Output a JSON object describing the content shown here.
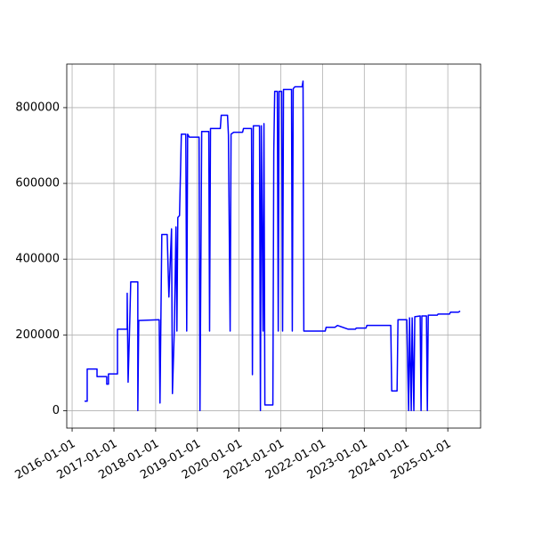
{
  "chart_data": {
    "type": "line",
    "x": [
      "2016-04-19",
      "2016-05-12",
      "2016-05-12",
      "2016-08-06",
      "2016-08-06",
      "2016-10-30",
      "2016-10-30",
      "2016-11-14",
      "2016-11-14",
      "2017-02-01",
      "2017-02-01",
      "2017-04-27",
      "2017-04-27",
      "2017-05-05",
      "2017-05-20",
      "2017-05-28",
      "2017-07-29",
      "2017-07-29",
      "2017-08-06",
      "2018-02-01",
      "2018-02-08",
      "2018-02-24",
      "2018-04-12",
      "2018-04-27",
      "2018-05-20",
      "2018-05-28",
      "2018-06-13",
      "2018-06-28",
      "2018-07-06",
      "2018-07-14",
      "2018-07-29",
      "2018-08-14",
      "2018-09-22",
      "2018-09-30",
      "2018-10-08",
      "2018-10-23",
      "2019-01-16",
      "2019-01-24",
      "2019-02-08",
      "2019-04-11",
      "2019-04-18",
      "2019-04-26",
      "2019-07-21",
      "2019-07-29",
      "2019-09-22",
      "2019-09-30",
      "2019-10-15",
      "2019-10-23",
      "2019-11-15",
      "2020-02-01",
      "2020-02-09",
      "2020-04-19",
      "2020-04-27",
      "2020-05-05",
      "2020-06-28",
      "2020-07-06",
      "2020-07-14",
      "2020-07-29",
      "2020-08-06",
      "2020-08-14",
      "2020-10-23",
      "2020-10-31",
      "2020-11-08",
      "2020-12-01",
      "2020-12-09",
      "2020-12-16",
      "2021-01-08",
      "2021-01-16",
      "2021-01-24",
      "2021-04-04",
      "2021-04-11",
      "2021-04-19",
      "2021-05-04",
      "2021-07-06",
      "2021-07-14",
      "2021-07-21",
      "2022-01-24",
      "2022-02-01",
      "2022-04-19",
      "2022-05-12",
      "2022-08-14",
      "2022-10-15",
      "2022-10-23",
      "2023-01-16",
      "2023-01-24",
      "2023-08-21",
      "2023-08-29",
      "2023-10-15",
      "2023-10-23",
      "2024-01-08",
      "2024-01-24",
      "2024-02-01",
      "2024-02-16",
      "2024-02-24",
      "2024-03-10",
      "2024-03-18",
      "2024-05-04",
      "2024-05-12",
      "2024-05-19",
      "2024-06-28",
      "2024-07-06",
      "2024-07-14",
      "2024-09-30",
      "2024-10-08",
      "2025-01-16",
      "2025-01-24",
      "2025-04-04",
      "2025-04-19"
    ],
    "values": [
      25000,
      25000,
      110000,
      110000,
      90000,
      90000,
      70000,
      70000,
      97000,
      97000,
      215000,
      215000,
      310000,
      75000,
      240000,
      340000,
      340000,
      0,
      238000,
      240000,
      20000,
      465000,
      465000,
      300000,
      480000,
      45000,
      210000,
      485000,
      210000,
      510000,
      515000,
      730000,
      730000,
      210000,
      730000,
      722000,
      722000,
      0,
      737000,
      737000,
      210000,
      745000,
      745000,
      780000,
      780000,
      728000,
      210000,
      730000,
      735000,
      735000,
      745000,
      745000,
      95000,
      752000,
      752000,
      0,
      752000,
      210000,
      758000,
      15000,
      15000,
      685000,
      843000,
      843000,
      210000,
      843000,
      843000,
      210000,
      848000,
      848000,
      210000,
      850000,
      855000,
      855000,
      870000,
      210000,
      210000,
      220000,
      220000,
      225000,
      215000,
      215000,
      218000,
      218000,
      225000,
      225000,
      52000,
      52000,
      240000,
      240000,
      0,
      245000,
      0,
      245000,
      0,
      248000,
      250000,
      0,
      250000,
      250000,
      0,
      252000,
      252000,
      255000,
      255000,
      260000,
      260000,
      263000
    ],
    "color": "#0000ff",
    "xlim": [
      "2015-11-15",
      "2025-10-15"
    ],
    "xticks": [
      "2016-01-01",
      "2017-01-01",
      "2018-01-01",
      "2019-01-01",
      "2020-01-01",
      "2021-01-01",
      "2022-01-01",
      "2023-01-01",
      "2024-01-01",
      "2025-01-01"
    ],
    "ylim": [
      -46000,
      915000
    ],
    "yticks": [
      0,
      200000,
      400000,
      600000,
      800000
    ],
    "grid": true
  }
}
